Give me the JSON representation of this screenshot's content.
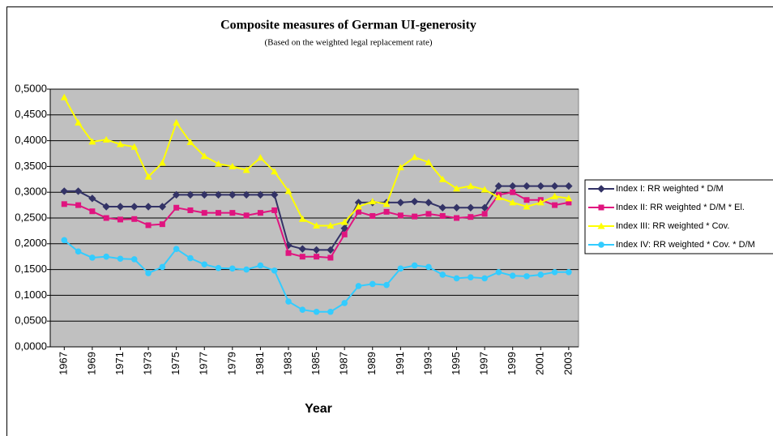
{
  "chart_data": {
    "type": "line",
    "title": "Composite measures of German UI-generosity",
    "subtitle": "(Based on the weighted legal replacement rate)",
    "x_label": "Year",
    "x": [
      1967,
      1968,
      1969,
      1970,
      1971,
      1972,
      1973,
      1974,
      1975,
      1976,
      1977,
      1978,
      1979,
      1980,
      1981,
      1982,
      1983,
      1984,
      1985,
      1986,
      1987,
      1988,
      1989,
      1990,
      1991,
      1992,
      1993,
      1994,
      1995,
      1996,
      1997,
      1998,
      1999,
      2000,
      2001,
      2002,
      2003
    ],
    "xlim": [
      1966,
      2003.7
    ],
    "xticks": [
      1967,
      1969,
      1971,
      1973,
      1975,
      1977,
      1979,
      1981,
      1983,
      1985,
      1987,
      1989,
      1991,
      1993,
      1995,
      1997,
      1999,
      2001,
      2003
    ],
    "ylim": [
      0,
      0.5
    ],
    "yticks": [
      {
        "value": 0,
        "label": "0,0000"
      },
      {
        "value": 0.05,
        "label": "0,0500"
      },
      {
        "value": 0.1,
        "label": "0,1000"
      },
      {
        "value": 0.15,
        "label": "0,1500"
      },
      {
        "value": 0.2,
        "label": "0,2000"
      },
      {
        "value": 0.25,
        "label": "0,2500"
      },
      {
        "value": 0.3,
        "label": "0,3000"
      },
      {
        "value": 0.35,
        "label": "0,3500"
      },
      {
        "value": 0.4,
        "label": "0,4000"
      },
      {
        "value": 0.45,
        "label": "0,4500"
      },
      {
        "value": 0.5,
        "label": "0,5000"
      }
    ],
    "grid": true,
    "legend": "right",
    "series": [
      {
        "name": "Index I: RR weighted * D/M",
        "color": "#333366",
        "marker": "diamond",
        "values": [
          0.302,
          0.302,
          0.288,
          0.272,
          0.272,
          0.272,
          0.272,
          0.272,
          0.295,
          0.295,
          0.295,
          0.295,
          0.295,
          0.295,
          0.295,
          0.295,
          0.197,
          0.19,
          0.188,
          0.188,
          0.23,
          0.28,
          0.28,
          0.28,
          0.28,
          0.282,
          0.28,
          0.27,
          0.27,
          0.27,
          0.27,
          0.312,
          0.312,
          0.312,
          0.312,
          0.312,
          0.312
        ]
      },
      {
        "name": "Index II: RR weighted * D/M * El.",
        "color": "#e0147f",
        "marker": "square",
        "values": [
          0.277,
          0.275,
          0.263,
          0.25,
          0.247,
          0.248,
          0.236,
          0.238,
          0.27,
          0.265,
          0.26,
          0.26,
          0.26,
          0.255,
          0.26,
          0.265,
          0.182,
          0.175,
          0.175,
          0.173,
          0.218,
          0.262,
          0.254,
          0.262,
          0.255,
          0.253,
          0.258,
          0.254,
          0.25,
          0.252,
          0.258,
          0.295,
          0.3,
          0.285,
          0.285,
          0.275,
          0.28
        ]
      },
      {
        "name": "Index III: RR weighted * Cov.",
        "color": "#ffff00",
        "marker": "triangle",
        "values": [
          0.484,
          0.435,
          0.398,
          0.402,
          0.393,
          0.388,
          0.33,
          0.357,
          0.435,
          0.397,
          0.37,
          0.355,
          0.35,
          0.343,
          0.367,
          0.34,
          0.302,
          0.248,
          0.235,
          0.235,
          0.242,
          0.272,
          0.282,
          0.277,
          0.348,
          0.368,
          0.358,
          0.325,
          0.307,
          0.312,
          0.305,
          0.29,
          0.28,
          0.272,
          0.28,
          0.292,
          0.288
        ]
      },
      {
        "name": "Index IV: RR weighted * Cov. * D/M",
        "color": "#33ccff",
        "marker": "circle",
        "values": [
          0.207,
          0.185,
          0.173,
          0.175,
          0.171,
          0.17,
          0.143,
          0.155,
          0.19,
          0.172,
          0.16,
          0.153,
          0.152,
          0.15,
          0.158,
          0.148,
          0.088,
          0.072,
          0.068,
          0.068,
          0.085,
          0.118,
          0.122,
          0.12,
          0.152,
          0.158,
          0.155,
          0.14,
          0.133,
          0.135,
          0.133,
          0.145,
          0.138,
          0.137,
          0.14,
          0.145,
          0.145
        ]
      }
    ]
  }
}
